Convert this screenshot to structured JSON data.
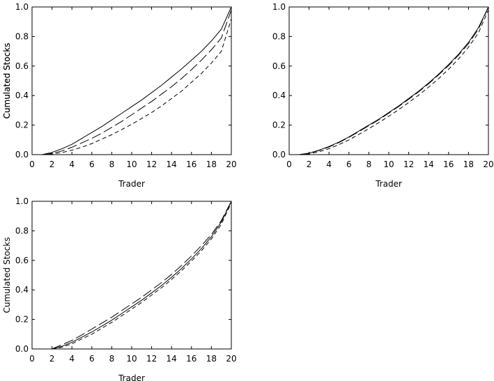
{
  "chart_data": [
    {
      "type": "line",
      "xlabel": "Trader",
      "ylabel": "Cumulated Stocks",
      "xlim": [
        0,
        20
      ],
      "ylim": [
        0,
        1
      ],
      "xticks": [
        "0",
        "2",
        "4",
        "6",
        "8",
        "10",
        "12",
        "14",
        "16",
        "18",
        "20"
      ],
      "yticks": [
        "0.0",
        "0.2",
        "0.4",
        "0.6",
        "0.8",
        "1.0"
      ],
      "grid": false,
      "series": [
        {
          "style": "solid",
          "x": [
            1,
            2,
            3,
            4,
            5,
            6,
            7,
            8,
            9,
            10,
            11,
            12,
            13,
            14,
            15,
            16,
            17,
            18,
            19,
            20
          ],
          "y": [
            0.0,
            0.015,
            0.04,
            0.07,
            0.11,
            0.15,
            0.19,
            0.235,
            0.28,
            0.325,
            0.37,
            0.42,
            0.47,
            0.525,
            0.58,
            0.64,
            0.7,
            0.77,
            0.85,
            1.0
          ]
        },
        {
          "style": "long-dash",
          "x": [
            1,
            2,
            3,
            4,
            5,
            6,
            7,
            8,
            9,
            10,
            11,
            12,
            13,
            14,
            15,
            16,
            17,
            18,
            19,
            20
          ],
          "y": [
            0.0,
            0.008,
            0.025,
            0.05,
            0.08,
            0.11,
            0.145,
            0.185,
            0.225,
            0.27,
            0.315,
            0.36,
            0.41,
            0.46,
            0.515,
            0.575,
            0.64,
            0.71,
            0.79,
            0.98
          ]
        },
        {
          "style": "short-dash",
          "x": [
            1,
            2,
            3,
            4,
            5,
            6,
            7,
            8,
            9,
            10,
            11,
            12,
            13,
            14,
            15,
            16,
            17,
            18,
            19,
            20
          ],
          "y": [
            0.0,
            0.004,
            0.014,
            0.03,
            0.05,
            0.075,
            0.105,
            0.135,
            0.17,
            0.205,
            0.245,
            0.285,
            0.33,
            0.38,
            0.43,
            0.49,
            0.55,
            0.62,
            0.7,
            0.92
          ]
        }
      ]
    },
    {
      "type": "line",
      "xlabel": "Trader",
      "ylabel": "Cumulated Stocks",
      "xlim": [
        0,
        20
      ],
      "ylim": [
        0,
        1
      ],
      "xticks": [
        "0",
        "2",
        "4",
        "6",
        "8",
        "10",
        "12",
        "14",
        "16",
        "18",
        "20"
      ],
      "yticks": [
        "0.0",
        "0.2",
        "0.4",
        "0.6",
        "0.8",
        "1.0"
      ],
      "grid": false,
      "series": [
        {
          "style": "solid",
          "x": [
            1,
            2,
            3,
            4,
            5,
            6,
            7,
            8,
            9,
            10,
            11,
            12,
            13,
            14,
            15,
            16,
            17,
            18,
            19,
            20
          ],
          "y": [
            0.0,
            0.01,
            0.03,
            0.055,
            0.085,
            0.12,
            0.16,
            0.2,
            0.24,
            0.285,
            0.33,
            0.38,
            0.43,
            0.485,
            0.545,
            0.61,
            0.68,
            0.76,
            0.86,
            1.0
          ]
        },
        {
          "style": "long-dash",
          "x": [
            1,
            2,
            3,
            4,
            5,
            6,
            7,
            8,
            9,
            10,
            11,
            12,
            13,
            14,
            15,
            16,
            17,
            18,
            19,
            20
          ],
          "y": [
            0.0,
            0.01,
            0.028,
            0.052,
            0.082,
            0.117,
            0.156,
            0.196,
            0.236,
            0.281,
            0.326,
            0.375,
            0.425,
            0.48,
            0.54,
            0.603,
            0.673,
            0.752,
            0.85,
            1.0
          ]
        },
        {
          "style": "short-dash",
          "x": [
            1,
            2,
            3,
            4,
            5,
            6,
            7,
            8,
            9,
            10,
            11,
            12,
            13,
            14,
            15,
            16,
            17,
            18,
            19,
            20
          ],
          "y": [
            0.0,
            0.005,
            0.02,
            0.04,
            0.068,
            0.1,
            0.137,
            0.176,
            0.217,
            0.26,
            0.305,
            0.353,
            0.403,
            0.457,
            0.515,
            0.578,
            0.648,
            0.728,
            0.825,
            0.98
          ]
        }
      ]
    },
    {
      "type": "line",
      "xlabel": "Trader",
      "ylabel": "Cumulated Stocks",
      "xlim": [
        0,
        20
      ],
      "ylim": [
        0,
        1
      ],
      "xticks": [
        "0",
        "2",
        "4",
        "6",
        "8",
        "10",
        "12",
        "14",
        "16",
        "18",
        "20"
      ],
      "yticks": [
        "0.0",
        "0.2",
        "0.4",
        "0.6",
        "0.8",
        "1.0"
      ],
      "grid": false,
      "series": [
        {
          "style": "solid",
          "x": [
            2,
            3,
            4,
            5,
            6,
            7,
            8,
            9,
            10,
            11,
            12,
            13,
            14,
            15,
            16,
            17,
            18,
            19,
            20
          ],
          "y": [
            0.0,
            0.018,
            0.045,
            0.08,
            0.115,
            0.155,
            0.195,
            0.24,
            0.285,
            0.33,
            0.38,
            0.43,
            0.485,
            0.545,
            0.61,
            0.68,
            0.76,
            0.86,
            1.0
          ]
        },
        {
          "style": "long-dash",
          "x": [
            2,
            3,
            4,
            5,
            6,
            7,
            8,
            9,
            10,
            11,
            12,
            13,
            14,
            15,
            16,
            17,
            18,
            19,
            20
          ],
          "y": [
            0.0,
            0.028,
            0.058,
            0.095,
            0.135,
            0.175,
            0.215,
            0.26,
            0.305,
            0.35,
            0.4,
            0.45,
            0.505,
            0.565,
            0.63,
            0.7,
            0.775,
            0.87,
            1.0
          ]
        },
        {
          "style": "short-dash",
          "x": [
            2,
            3,
            4,
            5,
            6,
            7,
            8,
            9,
            10,
            11,
            12,
            13,
            14,
            15,
            16,
            17,
            18,
            19,
            20
          ],
          "y": [
            0.0,
            0.012,
            0.035,
            0.068,
            0.1,
            0.14,
            0.18,
            0.225,
            0.27,
            0.315,
            0.365,
            0.415,
            0.47,
            0.53,
            0.595,
            0.665,
            0.745,
            0.845,
            0.99
          ]
        }
      ]
    }
  ]
}
